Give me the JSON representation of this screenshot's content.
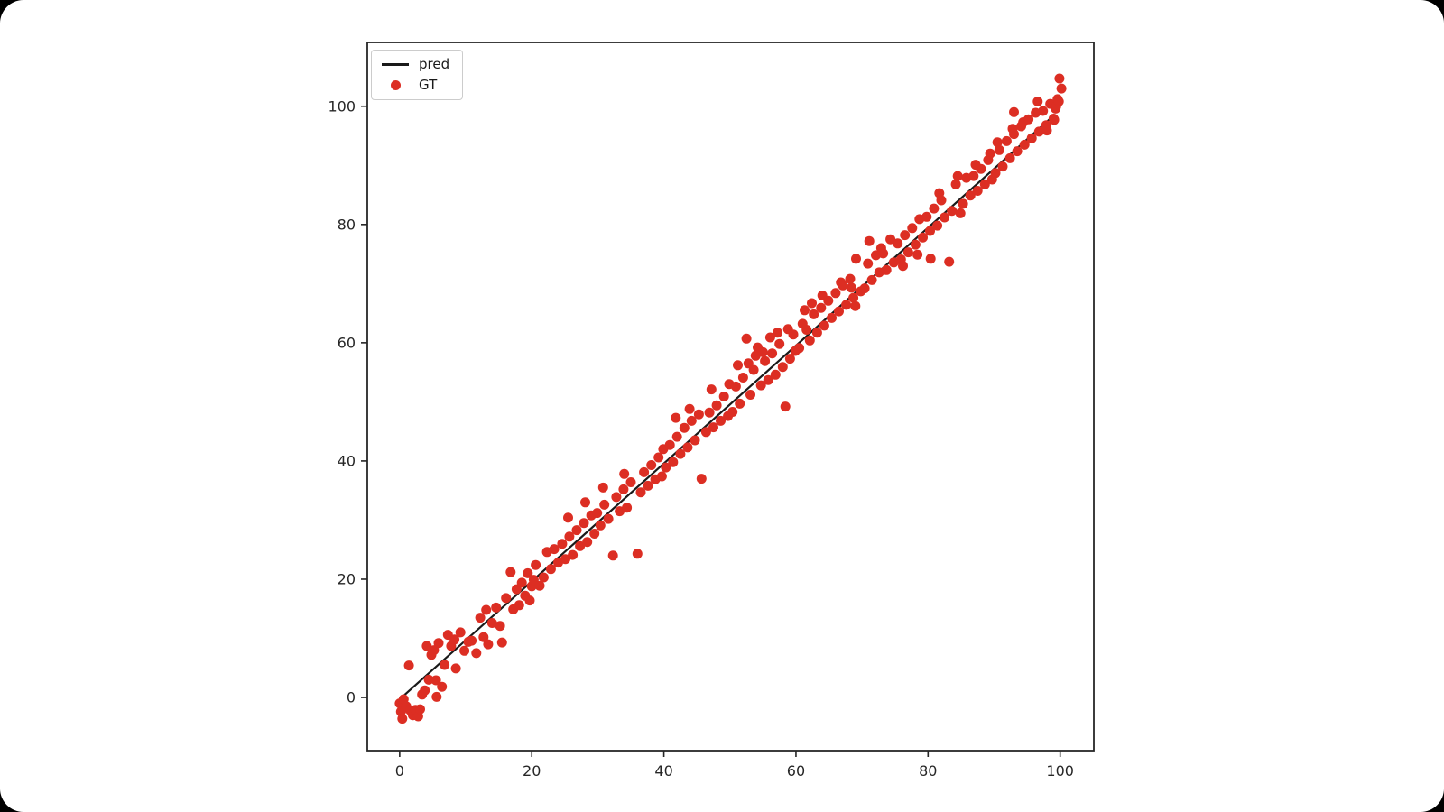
{
  "window": {
    "background_color": "#000000",
    "page_color": "#ffffff"
  },
  "chart_data": {
    "type": "scatter",
    "title": "",
    "xlabel": "",
    "ylabel": "",
    "grid": false,
    "xlim": [
      -4.9,
      105.1
    ],
    "ylim": [
      -9.0,
      110.8
    ],
    "x_ticks": [
      "0",
      "20",
      "40",
      "60",
      "80",
      "100"
    ],
    "x_tick_values": [
      0,
      20,
      40,
      60,
      80,
      100
    ],
    "y_ticks": [
      "0",
      "20",
      "40",
      "60",
      "80",
      "100"
    ],
    "y_tick_values": [
      0,
      20,
      40,
      60,
      80,
      100
    ],
    "axis_color": "#262626",
    "tick_label_color": "#262626",
    "legend": {
      "position": "upper-left",
      "entries": [
        {
          "label": "pred",
          "type": "line",
          "color": "#1a1a1a"
        },
        {
          "label": "GT",
          "type": "scatter",
          "color": "#dc2e23"
        }
      ]
    },
    "series": [
      {
        "name": "pred",
        "type": "line",
        "color": "#1a1a1a",
        "line_width": 2.2,
        "points": [
          [
            0.3,
            0.0
          ],
          [
            99.1,
            98.5
          ]
        ]
      },
      {
        "name": "GT",
        "type": "scatter",
        "color": "#dc2e23",
        "marker_radius": 5.5,
        "points": [
          [
            0.0,
            -1.0
          ],
          [
            0.2,
            -2.4
          ],
          [
            0.4,
            -3.6
          ],
          [
            0.6,
            -0.3
          ],
          [
            1.0,
            -1.5
          ],
          [
            1.4,
            5.4
          ],
          [
            1.6,
            -2.2
          ],
          [
            2.0,
            -3.0
          ],
          [
            2.4,
            -2.1
          ],
          [
            2.8,
            -3.2
          ],
          [
            3.1,
            -2.0
          ],
          [
            3.4,
            0.5
          ],
          [
            3.8,
            1.2
          ],
          [
            4.1,
            8.7
          ],
          [
            4.4,
            3.0
          ],
          [
            4.8,
            7.2
          ],
          [
            5.2,
            8.0
          ],
          [
            5.5,
            2.9
          ],
          [
            5.6,
            0.1
          ],
          [
            5.9,
            9.2
          ],
          [
            6.4,
            1.8
          ],
          [
            6.8,
            5.5
          ],
          [
            7.3,
            10.6
          ],
          [
            7.8,
            8.7
          ],
          [
            8.3,
            9.8
          ],
          [
            8.5,
            4.9
          ],
          [
            9.2,
            11.0
          ],
          [
            9.8,
            7.9
          ],
          [
            10.4,
            9.4
          ],
          [
            10.9,
            9.6
          ],
          [
            11.6,
            7.5
          ],
          [
            12.2,
            13.5
          ],
          [
            12.7,
            10.2
          ],
          [
            13.1,
            14.8
          ],
          [
            13.4,
            9.0
          ],
          [
            14.0,
            12.6
          ],
          [
            14.6,
            15.2
          ],
          [
            15.2,
            12.1
          ],
          [
            15.5,
            9.3
          ],
          [
            16.1,
            16.8
          ],
          [
            16.8,
            21.2
          ],
          [
            17.2,
            14.9
          ],
          [
            17.7,
            18.3
          ],
          [
            18.1,
            15.6
          ],
          [
            18.5,
            19.4
          ],
          [
            19.0,
            17.2
          ],
          [
            19.4,
            21.0
          ],
          [
            19.7,
            16.4
          ],
          [
            20.0,
            18.8
          ],
          [
            20.3,
            19.9
          ],
          [
            20.6,
            22.4
          ],
          [
            21.2,
            18.9
          ],
          [
            21.8,
            20.3
          ],
          [
            22.3,
            24.6
          ],
          [
            22.9,
            21.7
          ],
          [
            23.4,
            25.1
          ],
          [
            24.0,
            22.8
          ],
          [
            24.6,
            26.0
          ],
          [
            25.1,
            23.4
          ],
          [
            25.5,
            30.4
          ],
          [
            25.7,
            27.2
          ],
          [
            26.2,
            24.1
          ],
          [
            26.8,
            28.3
          ],
          [
            27.3,
            25.6
          ],
          [
            27.9,
            29.5
          ],
          [
            28.1,
            33.0
          ],
          [
            28.4,
            26.3
          ],
          [
            29.0,
            30.8
          ],
          [
            29.5,
            27.7
          ],
          [
            29.9,
            31.2
          ],
          [
            30.4,
            29.1
          ],
          [
            30.8,
            35.5
          ],
          [
            31.0,
            32.6
          ],
          [
            31.6,
            30.2
          ],
          [
            32.3,
            24.0
          ],
          [
            32.8,
            33.9
          ],
          [
            33.3,
            31.5
          ],
          [
            33.9,
            35.2
          ],
          [
            34.0,
            37.8
          ],
          [
            34.4,
            32.1
          ],
          [
            35.0,
            36.4
          ],
          [
            36.0,
            24.3
          ],
          [
            36.5,
            34.7
          ],
          [
            37.0,
            38.1
          ],
          [
            37.6,
            35.8
          ],
          [
            38.1,
            39.3
          ],
          [
            38.7,
            36.9
          ],
          [
            39.2,
            40.6
          ],
          [
            39.7,
            37.4
          ],
          [
            39.9,
            42.0
          ],
          [
            40.3,
            38.9
          ],
          [
            40.9,
            42.7
          ],
          [
            41.4,
            39.8
          ],
          [
            41.8,
            47.3
          ],
          [
            42.0,
            44.1
          ],
          [
            42.5,
            41.2
          ],
          [
            43.1,
            45.6
          ],
          [
            43.6,
            42.3
          ],
          [
            43.9,
            48.8
          ],
          [
            44.2,
            46.8
          ],
          [
            44.7,
            43.5
          ],
          [
            45.3,
            47.9
          ],
          [
            45.7,
            37.0
          ],
          [
            46.4,
            44.9
          ],
          [
            46.9,
            48.2
          ],
          [
            47.2,
            52.1
          ],
          [
            47.5,
            45.7
          ],
          [
            48.0,
            49.4
          ],
          [
            48.6,
            46.8
          ],
          [
            49.1,
            50.9
          ],
          [
            49.7,
            47.6
          ],
          [
            49.9,
            53.0
          ],
          [
            50.4,
            48.3
          ],
          [
            50.9,
            52.6
          ],
          [
            51.2,
            56.2
          ],
          [
            51.5,
            49.7
          ],
          [
            52.0,
            54.1
          ],
          [
            52.5,
            60.7
          ],
          [
            52.8,
            56.5
          ],
          [
            53.1,
            51.2
          ],
          [
            53.6,
            55.4
          ],
          [
            53.9,
            57.8
          ],
          [
            54.2,
            59.2
          ],
          [
            54.7,
            52.8
          ],
          [
            55.0,
            58.4
          ],
          [
            55.3,
            56.9
          ],
          [
            55.8,
            53.7
          ],
          [
            56.1,
            60.9
          ],
          [
            56.4,
            58.2
          ],
          [
            56.9,
            54.6
          ],
          [
            57.2,
            61.7
          ],
          [
            57.5,
            59.8
          ],
          [
            58.0,
            55.9
          ],
          [
            58.4,
            49.2
          ],
          [
            58.8,
            62.3
          ],
          [
            59.1,
            57.3
          ],
          [
            59.6,
            61.4
          ],
          [
            59.9,
            58.6
          ],
          [
            60.5,
            59.1
          ],
          [
            61.0,
            63.2
          ],
          [
            61.3,
            65.5
          ],
          [
            61.6,
            62.2
          ],
          [
            62.1,
            60.4
          ],
          [
            62.4,
            66.7
          ],
          [
            62.7,
            64.8
          ],
          [
            63.2,
            61.7
          ],
          [
            63.8,
            65.9
          ],
          [
            64.0,
            68.0
          ],
          [
            64.3,
            62.9
          ],
          [
            64.9,
            67.1
          ],
          [
            65.4,
            64.2
          ],
          [
            66.0,
            68.4
          ],
          [
            66.5,
            65.3
          ],
          [
            66.8,
            70.2
          ],
          [
            67.1,
            69.7
          ],
          [
            67.6,
            66.4
          ],
          [
            68.2,
            70.8
          ],
          [
            68.4,
            69.3
          ],
          [
            68.7,
            67.6
          ],
          [
            69.0,
            66.2
          ],
          [
            69.1,
            74.2
          ],
          [
            69.8,
            68.7
          ],
          [
            70.4,
            69.2
          ],
          [
            70.9,
            73.4
          ],
          [
            71.1,
            77.2
          ],
          [
            71.5,
            70.6
          ],
          [
            72.1,
            74.8
          ],
          [
            72.6,
            71.9
          ],
          [
            72.9,
            76.0
          ],
          [
            73.2,
            75.1
          ],
          [
            73.7,
            72.3
          ],
          [
            74.3,
            77.5
          ],
          [
            74.8,
            73.6
          ],
          [
            75.4,
            76.8
          ],
          [
            75.9,
            74.1
          ],
          [
            76.2,
            73.0
          ],
          [
            76.5,
            78.2
          ],
          [
            77.0,
            75.3
          ],
          [
            77.6,
            79.4
          ],
          [
            78.1,
            76.6
          ],
          [
            78.4,
            74.9
          ],
          [
            78.7,
            80.9
          ],
          [
            79.2,
            77.8
          ],
          [
            79.8,
            81.3
          ],
          [
            80.3,
            78.9
          ],
          [
            80.4,
            74.2
          ],
          [
            80.9,
            82.7
          ],
          [
            81.4,
            79.8
          ],
          [
            81.7,
            85.3
          ],
          [
            82.0,
            84.1
          ],
          [
            82.5,
            81.2
          ],
          [
            83.2,
            73.7
          ],
          [
            83.6,
            82.3
          ],
          [
            84.2,
            86.8
          ],
          [
            84.5,
            88.2
          ],
          [
            84.9,
            81.9
          ],
          [
            85.3,
            83.5
          ],
          [
            85.8,
            87.9
          ],
          [
            86.4,
            84.9
          ],
          [
            86.9,
            88.2
          ],
          [
            87.2,
            90.1
          ],
          [
            87.5,
            85.7
          ],
          [
            88.0,
            89.4
          ],
          [
            88.6,
            86.8
          ],
          [
            89.1,
            90.9
          ],
          [
            89.4,
            92.0
          ],
          [
            89.7,
            87.6
          ],
          [
            90.2,
            88.7
          ],
          [
            90.5,
            93.9
          ],
          [
            90.8,
            92.6
          ],
          [
            91.3,
            89.8
          ],
          [
            91.9,
            94.1
          ],
          [
            92.4,
            91.2
          ],
          [
            92.8,
            96.2
          ],
          [
            93.0,
            99.0
          ],
          [
            93.0,
            95.3
          ],
          [
            93.5,
            92.4
          ],
          [
            94.1,
            96.6
          ],
          [
            94.4,
            97.3
          ],
          [
            94.6,
            93.5
          ],
          [
            95.2,
            97.8
          ],
          [
            95.7,
            94.6
          ],
          [
            96.3,
            98.9
          ],
          [
            96.6,
            100.8
          ],
          [
            96.8,
            95.7
          ],
          [
            97.4,
            99.2
          ],
          [
            97.9,
            96.8
          ],
          [
            98.0,
            95.9
          ],
          [
            98.5,
            100.4
          ],
          [
            99.0,
            97.9
          ],
          [
            99.1,
            97.7
          ],
          [
            99.3,
            99.6
          ],
          [
            99.4,
            100.0
          ],
          [
            99.6,
            101.2
          ],
          [
            99.8,
            100.8
          ],
          [
            99.9,
            104.7
          ],
          [
            100.2,
            103.0
          ]
        ]
      }
    ]
  }
}
